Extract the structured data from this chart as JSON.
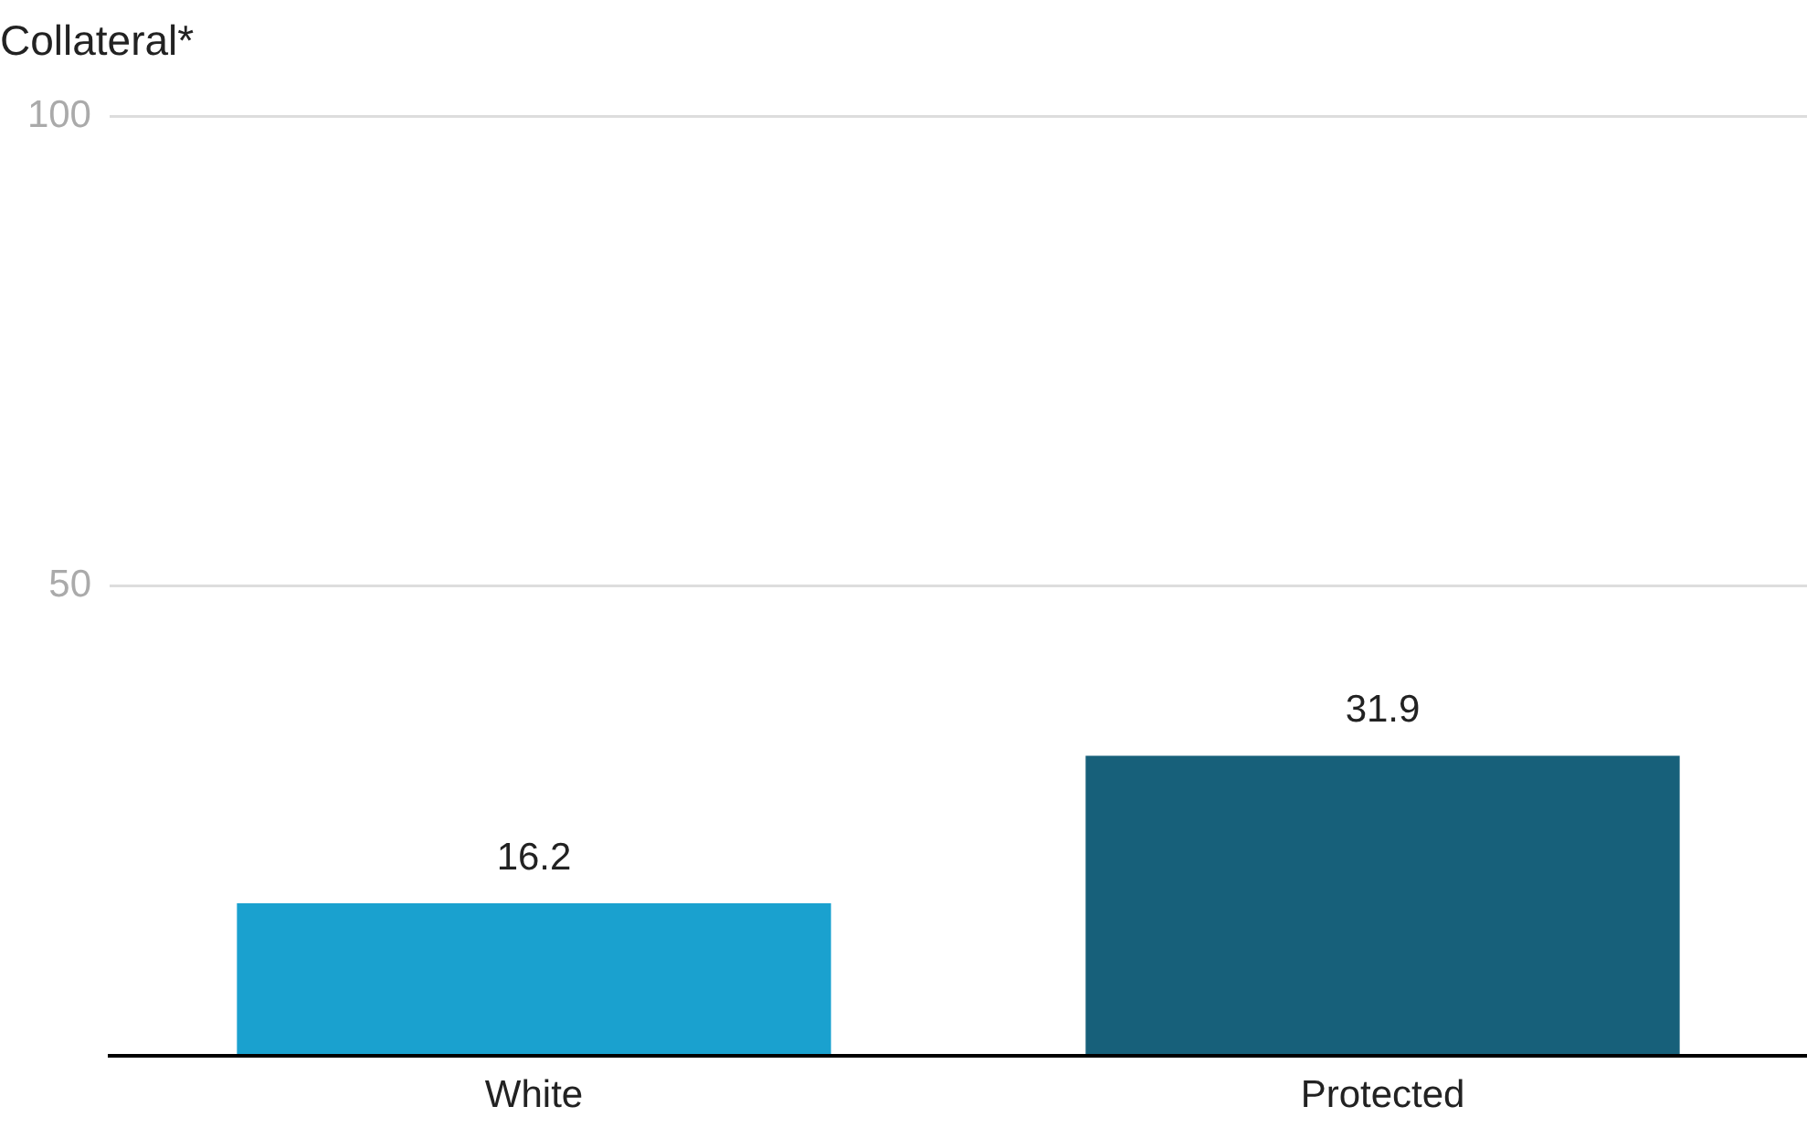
{
  "chart_data": {
    "type": "bar",
    "title": "Collateral*",
    "categories": [
      "White",
      "Protected"
    ],
    "values": [
      16.2,
      31.9
    ],
    "colors": [
      "#1aa1cf",
      "#17607a"
    ],
    "ylim": [
      0,
      100
    ],
    "yticks": [
      {
        "value": 0,
        "label": null
      },
      50,
      100
    ],
    "grid": "y",
    "data_labels": true
  }
}
